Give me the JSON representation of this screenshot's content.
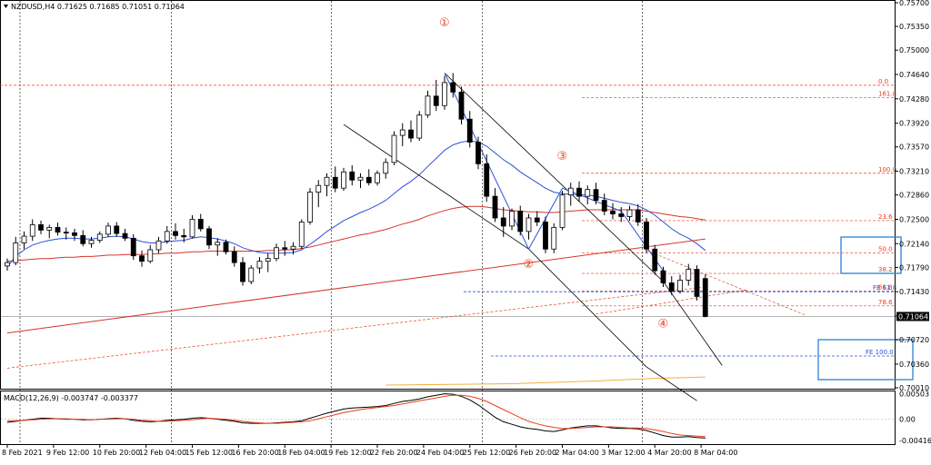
{
  "chart_data": {
    "type": "candlestick",
    "symbol_header": "NZDUSD,H4  0.71625 0.71685 0.71051 0.71064",
    "current_price": "0.71064",
    "ylim": [
      0.7001,
      0.757
    ],
    "y_ticks": [
      "0.75700",
      "0.75350",
      "0.75000",
      "0.74640",
      "0.74280",
      "0.73920",
      "0.73570",
      "0.73210",
      "0.72860",
      "0.72500",
      "0.72140",
      "0.71790",
      "0.71430",
      "0.71070",
      "0.70720",
      "0.70360",
      "0.70010"
    ],
    "x_ticks": [
      "8 Feb 2021",
      "9 Feb 12:00",
      "10 Feb 20:00",
      "12 Feb 04:00",
      "15 Feb 12:00",
      "16 Feb 20:00",
      "18 Feb 04:00",
      "19 Feb 12:00",
      "22 Feb 20:00",
      "24 Feb 04:00",
      "25 Feb 12:00",
      "26 Feb 20:00",
      "2 Mar 04:00",
      "3 Mar 12:00",
      "4 Mar 20:00",
      "8 Mar 04:00"
    ],
    "fib_labels": [
      "0.0",
      "161.8",
      "100.0",
      "23.6",
      "50.0",
      "38.2",
      "61.8",
      "78.6"
    ],
    "fe_labels": [
      "FE 61.8",
      "FE 100.0"
    ],
    "wave_labels": [
      "①",
      "②",
      "③",
      "④"
    ],
    "macd": {
      "header": "MACD(12,26,9) -0.003747 -0.003377",
      "y_ticks": [
        "0.00503",
        "0.00",
        "-0.004165"
      ],
      "ylim": [
        -0.0047,
        0.0051
      ]
    },
    "candles": [
      [
        0.7181,
        0.7192,
        0.7174,
        0.7186
      ],
      [
        0.7186,
        0.7224,
        0.7182,
        0.7215
      ],
      [
        0.7215,
        0.7232,
        0.7206,
        0.7225
      ],
      [
        0.7225,
        0.725,
        0.7218,
        0.7242
      ],
      [
        0.7242,
        0.7248,
        0.7228,
        0.7234
      ],
      [
        0.7234,
        0.7242,
        0.7222,
        0.7238
      ],
      [
        0.7238,
        0.7245,
        0.7226,
        0.7231
      ],
      [
        0.7231,
        0.7238,
        0.722,
        0.723
      ],
      [
        0.723,
        0.7236,
        0.7218,
        0.7226
      ],
      [
        0.7226,
        0.7234,
        0.721,
        0.7214
      ],
      [
        0.7214,
        0.7224,
        0.7208,
        0.7219
      ],
      [
        0.7219,
        0.7232,
        0.7215,
        0.7228
      ],
      [
        0.7228,
        0.7245,
        0.7224,
        0.724
      ],
      [
        0.724,
        0.7246,
        0.7224,
        0.7229
      ],
      [
        0.7229,
        0.7236,
        0.7218,
        0.7222
      ],
      [
        0.7222,
        0.7228,
        0.719,
        0.7196
      ],
      [
        0.7196,
        0.7204,
        0.718,
        0.7188
      ],
      [
        0.7188,
        0.7212,
        0.7185,
        0.7205
      ],
      [
        0.7205,
        0.7224,
        0.72,
        0.7218
      ],
      [
        0.7218,
        0.724,
        0.7214,
        0.7232
      ],
      [
        0.7232,
        0.7244,
        0.722,
        0.7226
      ],
      [
        0.7226,
        0.7236,
        0.7216,
        0.7224
      ],
      [
        0.7224,
        0.7256,
        0.7222,
        0.725
      ],
      [
        0.725,
        0.7258,
        0.7232,
        0.7236
      ],
      [
        0.7236,
        0.724,
        0.7206,
        0.7212
      ],
      [
        0.7212,
        0.7222,
        0.7196,
        0.7216
      ],
      [
        0.7216,
        0.722,
        0.7198,
        0.7202
      ],
      [
        0.7202,
        0.721,
        0.718,
        0.7186
      ],
      [
        0.7186,
        0.7194,
        0.7152,
        0.7158
      ],
      [
        0.7158,
        0.7182,
        0.7154,
        0.7178
      ],
      [
        0.7178,
        0.7194,
        0.717,
        0.7188
      ],
      [
        0.7188,
        0.72,
        0.7172,
        0.7192
      ],
      [
        0.7192,
        0.7214,
        0.7188,
        0.7208
      ],
      [
        0.7208,
        0.7218,
        0.7196,
        0.7206
      ],
      [
        0.7206,
        0.7216,
        0.7198,
        0.721
      ],
      [
        0.721,
        0.725,
        0.7206,
        0.7246
      ],
      [
        0.7246,
        0.7296,
        0.7242,
        0.729
      ],
      [
        0.729,
        0.7308,
        0.7268,
        0.73
      ],
      [
        0.73,
        0.7318,
        0.7284,
        0.7312
      ],
      [
        0.7312,
        0.7328,
        0.729,
        0.7296
      ],
      [
        0.7296,
        0.7326,
        0.7292,
        0.732
      ],
      [
        0.732,
        0.733,
        0.73,
        0.7308
      ],
      [
        0.7308,
        0.7318,
        0.7296,
        0.7312
      ],
      [
        0.7312,
        0.7324,
        0.73,
        0.7304
      ],
      [
        0.7304,
        0.7322,
        0.73,
        0.7318
      ],
      [
        0.7318,
        0.734,
        0.731,
        0.7334
      ],
      [
        0.7334,
        0.738,
        0.733,
        0.7374
      ],
      [
        0.7374,
        0.7392,
        0.7358,
        0.7382
      ],
      [
        0.7382,
        0.7396,
        0.7364,
        0.737
      ],
      [
        0.737,
        0.741,
        0.7366,
        0.7404
      ],
      [
        0.7404,
        0.744,
        0.74,
        0.7432
      ],
      [
        0.7432,
        0.7456,
        0.741,
        0.7418
      ],
      [
        0.7418,
        0.7462,
        0.7412,
        0.7452
      ],
      [
        0.7452,
        0.7466,
        0.743,
        0.7438
      ],
      [
        0.7438,
        0.7446,
        0.739,
        0.7398
      ],
      [
        0.7398,
        0.741,
        0.7356,
        0.7364
      ],
      [
        0.7364,
        0.7372,
        0.7324,
        0.7332
      ],
      [
        0.7332,
        0.7346,
        0.7276,
        0.7284
      ],
      [
        0.7284,
        0.7296,
        0.7246,
        0.7252
      ],
      [
        0.7252,
        0.7268,
        0.7224,
        0.724
      ],
      [
        0.724,
        0.7266,
        0.7234,
        0.7262
      ],
      [
        0.7262,
        0.727,
        0.7226,
        0.7232
      ],
      [
        0.7232,
        0.7258,
        0.722,
        0.7252
      ],
      [
        0.7252,
        0.7262,
        0.724,
        0.7246
      ],
      [
        0.7246,
        0.7254,
        0.72,
        0.7206
      ],
      [
        0.7206,
        0.7244,
        0.72,
        0.7238
      ],
      [
        0.7238,
        0.7292,
        0.7234,
        0.7286
      ],
      [
        0.7286,
        0.7304,
        0.727,
        0.7296
      ],
      [
        0.7296,
        0.7306,
        0.7276,
        0.7284
      ],
      [
        0.7284,
        0.73,
        0.7272,
        0.7294
      ],
      [
        0.7294,
        0.7304,
        0.7272,
        0.7278
      ],
      [
        0.7278,
        0.7288,
        0.7256,
        0.7262
      ],
      [
        0.7262,
        0.7274,
        0.725,
        0.7258
      ],
      [
        0.7258,
        0.7268,
        0.7246,
        0.7254
      ],
      [
        0.7254,
        0.727,
        0.7248,
        0.7264
      ],
      [
        0.7264,
        0.7272,
        0.724,
        0.7246
      ],
      [
        0.7246,
        0.7252,
        0.72,
        0.7206
      ],
      [
        0.7206,
        0.7212,
        0.7168,
        0.7174
      ],
      [
        0.7174,
        0.718,
        0.715,
        0.7156
      ],
      [
        0.7156,
        0.7166,
        0.7138,
        0.7144
      ],
      [
        0.7144,
        0.7168,
        0.714,
        0.716
      ],
      [
        0.716,
        0.7184,
        0.7152,
        0.7176
      ],
      [
        0.7176,
        0.7182,
        0.713,
        0.7136
      ],
      [
        0.71625,
        0.71685,
        0.71051,
        0.71064
      ]
    ],
    "ma_fast": [
      0.718,
      0.7195,
      0.7205,
      0.7212,
      0.7216,
      0.7219,
      0.7221,
      0.7222,
      0.7222,
      0.7221,
      0.7221,
      0.7222,
      0.7224,
      0.7225,
      0.7224,
      0.7221,
      0.7217,
      0.7215,
      0.7215,
      0.7217,
      0.7218,
      0.7219,
      0.7222,
      0.7224,
      0.7223,
      0.7221,
      0.7218,
      0.7214,
      0.7208,
      0.7204,
      0.7201,
      0.72,
      0.72,
      0.72,
      0.7201,
      0.7205,
      0.7213,
      0.7222,
      0.7232,
      0.724,
      0.7248,
      0.7254,
      0.726,
      0.7265,
      0.7271,
      0.7278,
      0.7288,
      0.7298,
      0.7306,
      0.7316,
      0.7328,
      0.734,
      0.7352,
      0.736,
      0.7364,
      0.7366,
      0.7364,
      0.7358,
      0.7348,
      0.7338,
      0.733,
      0.732,
      0.7312,
      0.7304,
      0.7296,
      0.729,
      0.7288,
      0.7287,
      0.7286,
      0.7286,
      0.7284,
      0.7281,
      0.7278,
      0.7275,
      0.7273,
      0.727,
      0.7264,
      0.7256,
      0.7246,
      0.7236,
      0.7228,
      0.7222,
      0.7214,
      0.7204
    ],
    "ma_slow": [
      0.7188,
      0.7189,
      0.719,
      0.7191,
      0.7192,
      0.7192,
      0.7193,
      0.7194,
      0.7194,
      0.7195,
      0.7195,
      0.7196,
      0.7197,
      0.7197,
      0.7198,
      0.7198,
      0.7198,
      0.7199,
      0.7199,
      0.72,
      0.72,
      0.7201,
      0.7202,
      0.7202,
      0.7203,
      0.7203,
      0.7203,
      0.7203,
      0.7203,
      0.7203,
      0.7203,
      0.7204,
      0.7204,
      0.7205,
      0.7205,
      0.7207,
      0.7209,
      0.7212,
      0.7215,
      0.7218,
      0.7221,
      0.7224,
      0.7227,
      0.7229,
      0.7232,
      0.7235,
      0.7239,
      0.7243,
      0.7246,
      0.725,
      0.7255,
      0.7259,
      0.7263,
      0.7266,
      0.7268,
      0.7269,
      0.7269,
      0.7268,
      0.7266,
      0.7264,
      0.7263,
      0.7262,
      0.7261,
      0.7261,
      0.726,
      0.726,
      0.7261,
      0.7262,
      0.7263,
      0.7264,
      0.7264,
      0.7264,
      0.7264,
      0.7264,
      0.7264,
      0.7264,
      0.7262,
      0.726,
      0.7258,
      0.7256,
      0.7254,
      0.7253,
      0.7251,
      0.7249
    ],
    "ma_long": [
      [
        45,
        0.7005
      ],
      [
        60,
        0.7007
      ],
      [
        70,
        0.7011
      ],
      [
        77,
        0.7015
      ],
      [
        83,
        0.7017
      ]
    ],
    "trendline_red": [
      [
        0,
        0.7082
      ],
      [
        83,
        0.7221
      ]
    ],
    "channel_upper": [
      [
        52,
        0.7466
      ],
      [
        78,
        0.7158
      ],
      [
        85,
        0.7034
      ]
    ],
    "channel_lower": [
      [
        40,
        0.739
      ],
      [
        62,
        0.7206
      ],
      [
        76,
        0.7032
      ],
      [
        82,
        0.6982
      ]
    ],
    "zigzag": [
      [
        52,
        0.7466
      ],
      [
        62,
        0.7206
      ],
      [
        66,
        0.7296
      ],
      [
        73,
        0.7262
      ],
      [
        78,
        0.7174
      ]
    ],
    "fib_levels": [
      0.7448,
      0.743,
      0.7318,
      0.7248,
      0.72,
      0.717,
      0.7144,
      0.7122
    ],
    "fe_levels": [
      0.7143,
      0.7048
    ],
    "macd_main": [
      -0.0006,
      -0.0004,
      -0.0002,
      0.0,
      0.0002,
      0.0002,
      0.0001,
      0.0,
      0.0,
      -0.0001,
      -0.0001,
      0.0,
      0.0001,
      0.0002,
      0.0001,
      -0.0002,
      -0.0004,
      -0.0005,
      -0.0004,
      -0.0002,
      -0.0001,
      0.0,
      0.0002,
      0.0003,
      0.0002,
      0.0,
      -0.0002,
      -0.0004,
      -0.0007,
      -0.0008,
      -0.0008,
      -0.0008,
      -0.0007,
      -0.0006,
      -0.0005,
      -0.0003,
      0.0002,
      0.0007,
      0.0012,
      0.0016,
      0.002,
      0.0022,
      0.0023,
      0.0024,
      0.0025,
      0.0027,
      0.0031,
      0.0035,
      0.0037,
      0.004,
      0.0044,
      0.0047,
      0.005,
      0.0049,
      0.0045,
      0.0038,
      0.0028,
      0.0016,
      0.0004,
      -0.0005,
      -0.001,
      -0.0015,
      -0.0018,
      -0.002,
      -0.0023,
      -0.0024,
      -0.0021,
      -0.0017,
      -0.0015,
      -0.0013,
      -0.0013,
      -0.0015,
      -0.0017,
      -0.0018,
      -0.0018,
      -0.0019,
      -0.0022,
      -0.0027,
      -0.0032,
      -0.0035,
      -0.0035,
      -0.0034,
      -0.0036,
      -0.0037
    ],
    "macd_signal": [
      -0.0003,
      -0.0003,
      -0.0002,
      -0.0001,
      0.0,
      0.0001,
      0.0001,
      0.0001,
      0.0,
      0.0,
      -0.0001,
      0.0,
      0.0,
      0.0001,
      0.0001,
      0.0,
      -0.0002,
      -0.0003,
      -0.0004,
      -0.0004,
      -0.0003,
      -0.0002,
      -0.0001,
      0.0001,
      0.0002,
      0.0001,
      0.0,
      -0.0002,
      -0.0004,
      -0.0006,
      -0.0007,
      -0.0008,
      -0.0008,
      -0.0007,
      -0.0006,
      -0.0005,
      -0.0003,
      0.0001,
      0.0005,
      0.0009,
      0.0013,
      0.0016,
      0.0019,
      0.0021,
      0.0023,
      0.0025,
      0.0027,
      0.003,
      0.0033,
      0.0036,
      0.0039,
      0.0042,
      0.0045,
      0.0047,
      0.0047,
      0.0045,
      0.0041,
      0.0035,
      0.0027,
      0.0019,
      0.0011,
      0.0003,
      -0.0004,
      -0.0009,
      -0.0013,
      -0.0016,
      -0.0018,
      -0.0018,
      -0.0017,
      -0.0016,
      -0.0015,
      -0.0015,
      -0.0015,
      -0.0016,
      -0.0017,
      -0.0017,
      -0.0018,
      -0.0021,
      -0.0024,
      -0.0028,
      -0.0031,
      -0.0032,
      -0.0033,
      -0.0034
    ]
  },
  "colors": {
    "bull_fill": "#ffffff",
    "bear_fill": "#000000",
    "ma_fast": "#2c51d6",
    "ma_slow": "#d6352c",
    "ma_long": "#f0b040",
    "fib": "#e8401c",
    "fe": "#2c51d6",
    "macd_main": "#000000",
    "macd_signal": "#e8401c",
    "price_marker": "#000000"
  }
}
